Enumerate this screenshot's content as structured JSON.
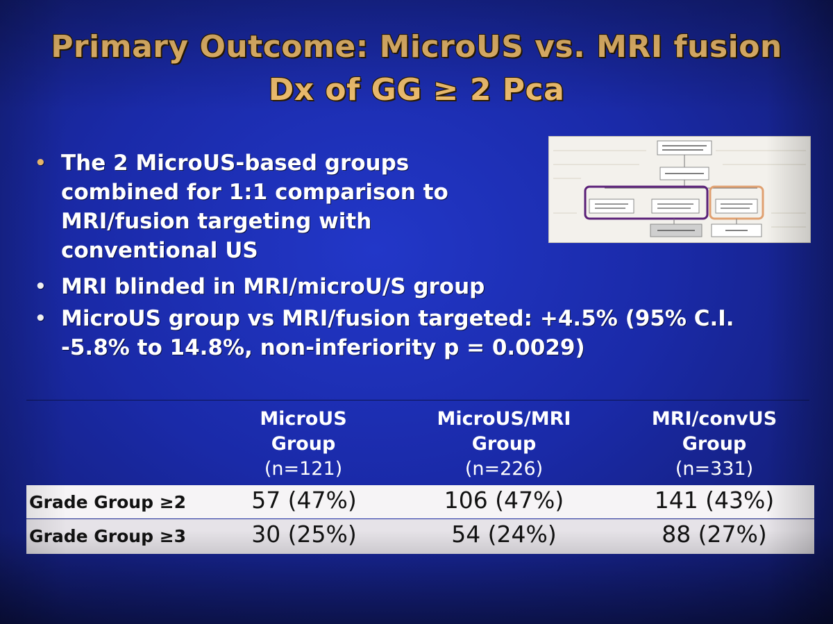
{
  "slide": {
    "title_line1": "Primary Outcome: MicroUS vs. MRI fusion",
    "title_line2": "Dx of GG ≥ 2 Pca"
  },
  "bullets": [
    {
      "marker": "•",
      "text": "The 2 MicroUS-based groups combined for 1:1  comparison to MRI/fusion targeting with conventional US"
    },
    {
      "marker": "•",
      "text": "MRI blinded in MRI/microU/S group"
    },
    {
      "marker": "•",
      "text": "MicroUS group vs MRI/fusion targeted: +4.5% (95% C.I. -5.8% to 14.8%, non-inferiority p = 0.0029)"
    }
  ],
  "colors": {
    "title": "#f2c070",
    "slide_bg": "#1a2aa8",
    "diagram_highlight_purple": "#5a1f78",
    "diagram_highlight_orange": "#e0a070"
  },
  "table": {
    "columns": [
      {
        "line1": "MicroUS",
        "line2": "Group",
        "n": "(n=121)"
      },
      {
        "line1": "MicroUS/MRI",
        "line2": "Group",
        "n": "(n=226)"
      },
      {
        "line1": "MRI/convUS",
        "line2": "Group",
        "n": "(n=331)"
      }
    ],
    "rows": [
      {
        "label": "Grade Group ≥2",
        "values": [
          "57 (47%)",
          "106 (47%)",
          "141 (43%)"
        ]
      },
      {
        "label": "Grade Group ≥3",
        "values": [
          "30 (25%)",
          "54 (24%)",
          "88 (27%)"
        ]
      }
    ]
  }
}
